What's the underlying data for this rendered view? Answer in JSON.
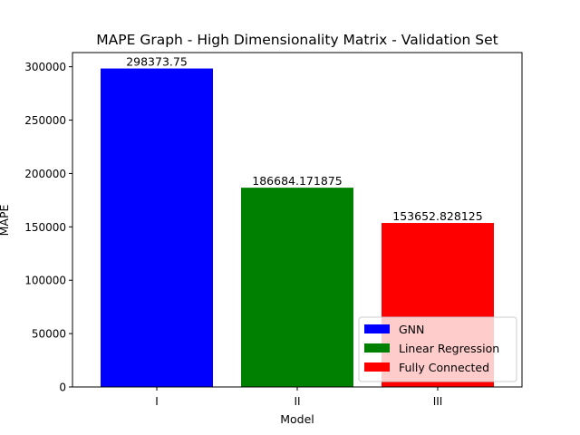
{
  "chart_data": {
    "type": "bar",
    "title": "MAPE Graph - High Dimensionality Matrix - Validation Set",
    "xlabel": "Model",
    "ylabel": "MAPE",
    "categories": [
      "I",
      "II",
      "III"
    ],
    "values": [
      298373.75,
      186684.171875,
      153652.828125
    ],
    "value_labels": [
      "298373.75",
      "186684.171875",
      "153652.828125"
    ],
    "colors": [
      "#0000ff",
      "#008000",
      "#ff0000"
    ],
    "ylim": [
      0,
      313292.4375
    ],
    "yticks": [
      0,
      50000,
      100000,
      150000,
      200000,
      250000,
      300000
    ],
    "ytick_labels": [
      "0",
      "50000",
      "100000",
      "150000",
      "200000",
      "250000",
      "300000"
    ],
    "grid": false,
    "legend": {
      "position": "lower-right",
      "entries": [
        {
          "name": "GNN",
          "color": "#0000ff"
        },
        {
          "name": "Linear Regression",
          "color": "#008000"
        },
        {
          "name": "Fully Connected",
          "color": "#ff0000"
        }
      ]
    }
  }
}
